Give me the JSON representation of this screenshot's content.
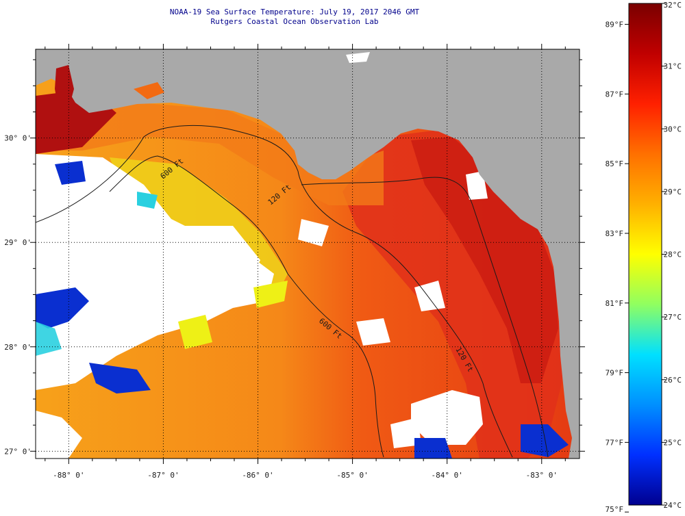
{
  "title": {
    "line1": "NOAA-19 Sea Surface Temperature:  July 19, 2017 2046 GMT",
    "line2": "Rutgers Coastal Ocean Observation Lab"
  },
  "map": {
    "lon_range": [
      -88.35,
      -82.6
    ],
    "lat_range": [
      26.93,
      30.85
    ],
    "lat_ticks": [
      {
        "value": 27,
        "label": "27° 0'"
      },
      {
        "value": 28,
        "label": "28° 0'"
      },
      {
        "value": 29,
        "label": "29° 0'"
      },
      {
        "value": 30,
        "label": "30° 0'"
      }
    ],
    "lon_ticks": [
      {
        "value": -88,
        "label": "-88° 0'"
      },
      {
        "value": -87,
        "label": "-87° 0'"
      },
      {
        "value": -86,
        "label": "-86° 0'"
      },
      {
        "value": -85,
        "label": "-85° 0'"
      },
      {
        "value": -84,
        "label": "-84° 0'"
      },
      {
        "value": -83,
        "label": "-83° 0'"
      }
    ],
    "contour_labels": [
      "120 Ft",
      "600 Ft",
      "600 Ft",
      "120 Ft"
    ],
    "colors": {
      "land": "#a9a9a9",
      "cloud": "#ffffff",
      "hot": "#c81a10",
      "warm": "#f26a12",
      "mild": "#f9a71c",
      "cool": "#eef016",
      "cold": "#0a2fd0"
    }
  },
  "colorbar": {
    "celsius": [
      {
        "value": 32,
        "label": "32°C"
      },
      {
        "value": 31,
        "label": "31°C"
      },
      {
        "value": 30,
        "label": "30°C"
      },
      {
        "value": 29,
        "label": "29°C"
      },
      {
        "value": 28,
        "label": "28°C"
      },
      {
        "value": 27,
        "label": "27°C"
      },
      {
        "value": 26,
        "label": "26°C"
      },
      {
        "value": 25,
        "label": "25°C"
      },
      {
        "value": 24,
        "label": "24°C"
      }
    ],
    "fahrenheit": [
      {
        "value": 89,
        "label": "89°F"
      },
      {
        "value": 87,
        "label": "87°F"
      },
      {
        "value": 85,
        "label": "85°F"
      },
      {
        "value": 83,
        "label": "83°F"
      },
      {
        "value": 81,
        "label": "81°F"
      },
      {
        "value": 79,
        "label": "79°F"
      },
      {
        "value": 77,
        "label": "77°F"
      },
      {
        "value": 75,
        "label": "75°F"
      }
    ],
    "scale_stops": [
      "#7a0000",
      "#c00000",
      "#ff2000",
      "#ff7000",
      "#ffb000",
      "#ffff00",
      "#90ff60",
      "#00e0ff",
      "#0090ff",
      "#0030ff",
      "#00008f"
    ]
  }
}
